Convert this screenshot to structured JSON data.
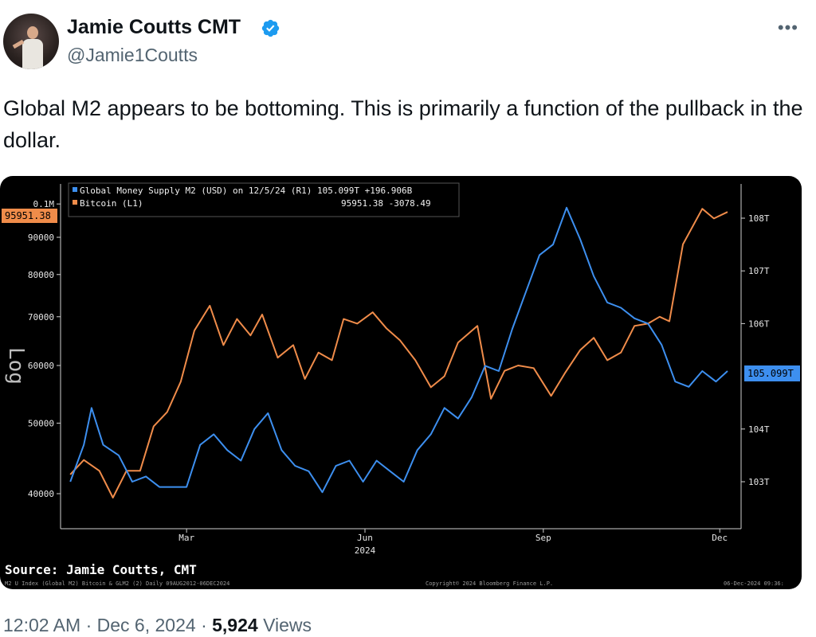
{
  "author": {
    "name": "Jamie Coutts CMT",
    "handle": "@Jamie1Coutts",
    "verified_color": "#1d9bf0",
    "avatar_icon": "profile-photo"
  },
  "more_icon": "more-horizontal-icon",
  "tweet": {
    "text": "Global M2 appears to be bottoming. This is primarily a function of the pullback in the dollar."
  },
  "chart": {
    "legend": [
      {
        "label": "Global Money Supply M2 (USD) on 12/5/24 (R1) 105.099T +196.906B",
        "color": "#3d8fef"
      },
      {
        "label": "Bitcoin (L1)",
        "color": "#f08c4a",
        "value_text": "95951.38 -3078.49"
      }
    ],
    "left_axis_label": "Log",
    "left_ticks": [
      "0.1M",
      "90000",
      "80000",
      "70000",
      "60000",
      "50000",
      "40000"
    ],
    "right_ticks": [
      "108T",
      "107T",
      "106T",
      "104T",
      "103T"
    ],
    "left_current_badge": "95951.38",
    "right_current_badge": "105.099T",
    "x_ticks": [
      "Mar",
      "Jun",
      "Sep",
      "Dec"
    ],
    "x_year": "2024",
    "source": "Source: Jamie Coutts, CMT",
    "footer_left": "M2 U Index (Global M2) Bitcoin & GLM2 (2) Daily 09AUG2012-06DEC2024",
    "footer_mid": "Copyright© 2024 Bloomberg Finance L.P.",
    "footer_right": "06-Dec-2024 09:36:"
  },
  "chart_data": {
    "type": "line",
    "x_axis": "date",
    "series": [
      {
        "name": "Bitcoin (L1)",
        "axis": "left",
        "scale": "log",
        "color": "#f08c4a",
        "points": [
          [
            "2024-01-01",
            42500
          ],
          [
            "2024-01-08",
            44500
          ],
          [
            "2024-01-16",
            43000
          ],
          [
            "2024-01-23",
            39500
          ],
          [
            "2024-01-30",
            43000
          ],
          [
            "2024-02-06",
            43000
          ],
          [
            "2024-02-13",
            49500
          ],
          [
            "2024-02-20",
            51800
          ],
          [
            "2024-02-27",
            57000
          ],
          [
            "2024-03-05",
            67000
          ],
          [
            "2024-03-13",
            72500
          ],
          [
            "2024-03-20",
            64000
          ],
          [
            "2024-03-27",
            69500
          ],
          [
            "2024-04-03",
            66000
          ],
          [
            "2024-04-09",
            70500
          ],
          [
            "2024-04-17",
            61500
          ],
          [
            "2024-04-25",
            64000
          ],
          [
            "2024-05-01",
            57500
          ],
          [
            "2024-05-08",
            62500
          ],
          [
            "2024-05-15",
            61000
          ],
          [
            "2024-05-21",
            69500
          ],
          [
            "2024-05-28",
            68500
          ],
          [
            "2024-06-05",
            71000
          ],
          [
            "2024-06-12",
            67500
          ],
          [
            "2024-06-19",
            65000
          ],
          [
            "2024-06-27",
            61000
          ],
          [
            "2024-07-05",
            56000
          ],
          [
            "2024-07-12",
            58000
          ],
          [
            "2024-07-19",
            64500
          ],
          [
            "2024-07-29",
            68000
          ],
          [
            "2024-08-05",
            54000
          ],
          [
            "2024-08-12",
            59000
          ],
          [
            "2024-08-19",
            60000
          ],
          [
            "2024-08-27",
            59500
          ],
          [
            "2024-09-05",
            54500
          ],
          [
            "2024-09-12",
            58500
          ],
          [
            "2024-09-20",
            63000
          ],
          [
            "2024-09-27",
            65500
          ],
          [
            "2024-10-04",
            61000
          ],
          [
            "2024-10-11",
            62500
          ],
          [
            "2024-10-18",
            68000
          ],
          [
            "2024-10-25",
            68500
          ],
          [
            "2024-10-31",
            70000
          ],
          [
            "2024-11-05",
            69000
          ],
          [
            "2024-11-12",
            88000
          ],
          [
            "2024-11-22",
            98500
          ],
          [
            "2024-11-28",
            95500
          ],
          [
            "2024-12-05",
            97500
          ]
        ]
      },
      {
        "name": "Global Money Supply M2 (USD)",
        "axis": "right",
        "unit": "T",
        "color": "#3d8fef",
        "points": [
          [
            "2024-01-01",
            103.0
          ],
          [
            "2024-01-08",
            103.7
          ],
          [
            "2024-01-12",
            104.4
          ],
          [
            "2024-01-18",
            103.7
          ],
          [
            "2024-01-26",
            103.5
          ],
          [
            "2024-02-02",
            103.0
          ],
          [
            "2024-02-09",
            103.1
          ],
          [
            "2024-02-16",
            102.9
          ],
          [
            "2024-02-23",
            102.9
          ],
          [
            "2024-03-01",
            102.9
          ],
          [
            "2024-03-08",
            103.7
          ],
          [
            "2024-03-15",
            103.9
          ],
          [
            "2024-03-22",
            103.6
          ],
          [
            "2024-03-29",
            103.4
          ],
          [
            "2024-04-05",
            104.0
          ],
          [
            "2024-04-12",
            104.3
          ],
          [
            "2024-04-19",
            103.6
          ],
          [
            "2024-04-26",
            103.3
          ],
          [
            "2024-05-03",
            103.2
          ],
          [
            "2024-05-10",
            102.8
          ],
          [
            "2024-05-17",
            103.3
          ],
          [
            "2024-05-24",
            103.4
          ],
          [
            "2024-05-31",
            103.0
          ],
          [
            "2024-06-07",
            103.4
          ],
          [
            "2024-06-14",
            103.2
          ],
          [
            "2024-06-21",
            103.0
          ],
          [
            "2024-06-28",
            103.6
          ],
          [
            "2024-07-05",
            103.9
          ],
          [
            "2024-07-12",
            104.4
          ],
          [
            "2024-07-19",
            104.2
          ],
          [
            "2024-07-26",
            104.6
          ],
          [
            "2024-08-02",
            105.2
          ],
          [
            "2024-08-09",
            105.1
          ],
          [
            "2024-08-16",
            105.9
          ],
          [
            "2024-08-23",
            106.6
          ],
          [
            "2024-08-30",
            107.3
          ],
          [
            "2024-09-06",
            107.5
          ],
          [
            "2024-09-13",
            108.2
          ],
          [
            "2024-09-20",
            107.6
          ],
          [
            "2024-09-27",
            106.9
          ],
          [
            "2024-10-04",
            106.4
          ],
          [
            "2024-10-11",
            106.3
          ],
          [
            "2024-10-18",
            106.1
          ],
          [
            "2024-10-25",
            106.0
          ],
          [
            "2024-11-01",
            105.6
          ],
          [
            "2024-11-08",
            104.9
          ],
          [
            "2024-11-15",
            104.8
          ],
          [
            "2024-11-22",
            105.1
          ],
          [
            "2024-11-29",
            104.9
          ],
          [
            "2024-12-05",
            105.099
          ]
        ]
      }
    ]
  },
  "meta": {
    "time": "12:02 AM",
    "separator1": "·",
    "date": "Dec 6, 2024",
    "separator2": "·",
    "views": "5,924",
    "views_label": "Views"
  }
}
